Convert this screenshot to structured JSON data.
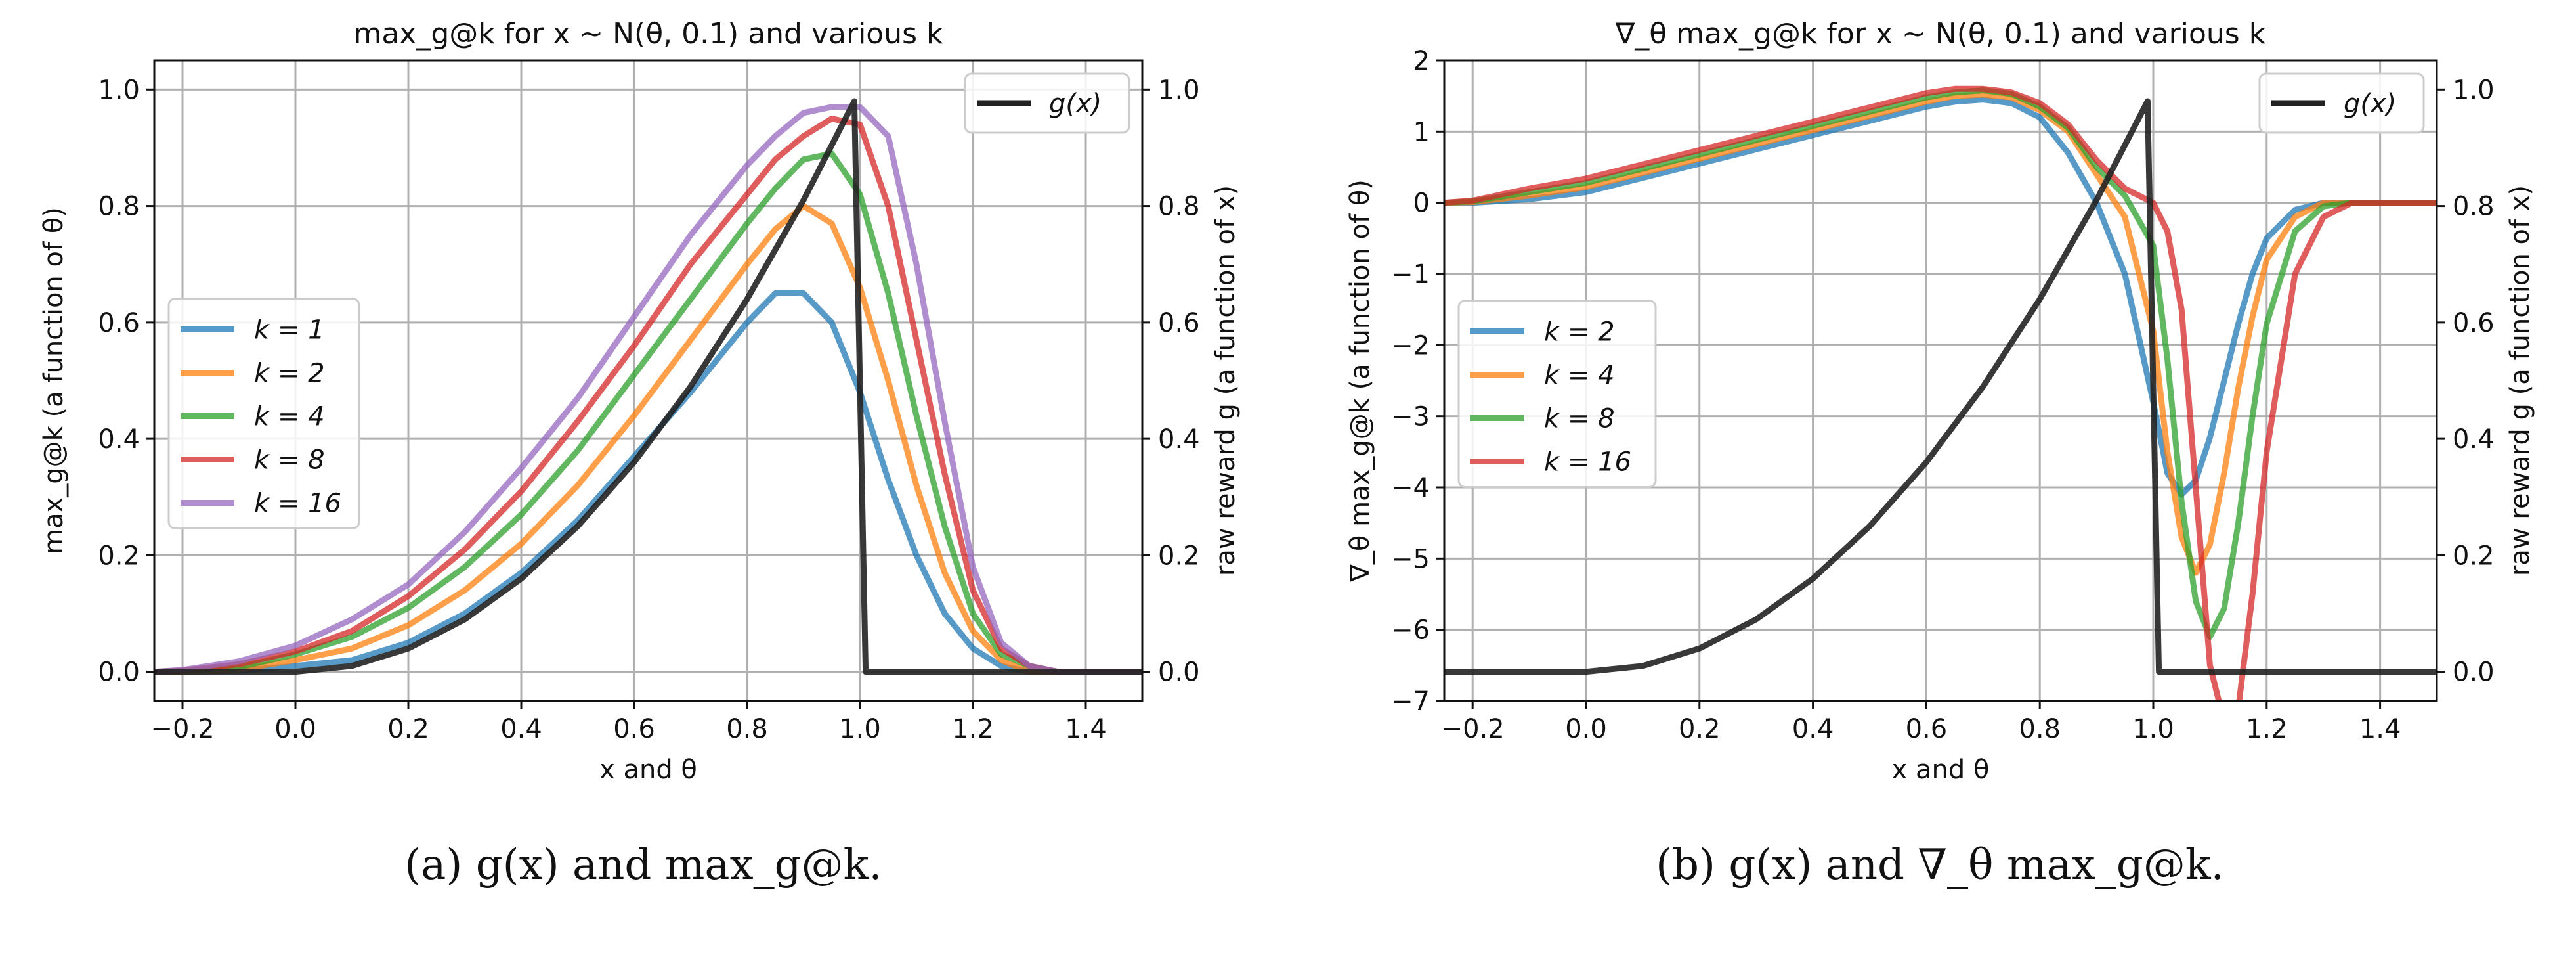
{
  "captions": {
    "a": "(a) g(x) and max_g@k.",
    "b": "(b) g(x) and ∇_θ max_g@k."
  },
  "colors": {
    "k1": "#1f77b4",
    "k2": "#ff7f0e",
    "k4": "#2ca02c",
    "k8": "#d62728",
    "k16": "#9467bd",
    "g": "#222222",
    "grid": "#b0b0b0"
  },
  "chart_data": [
    {
      "type": "line",
      "title": "max_g@k for x ~ N(θ, 0.1) and various k",
      "xlabel": "x and θ",
      "ylabel": "max_g@k (a function of θ)",
      "y2label": "raw reward g (a function of x)",
      "xlim": [
        -0.25,
        1.5
      ],
      "ylim": [
        -0.05,
        1.05
      ],
      "y2lim": [
        -0.05,
        1.05
      ],
      "xticks": [
        "-0.2",
        "0.0",
        "0.2",
        "0.4",
        "0.6",
        "0.8",
        "1.0",
        "1.2",
        "1.4"
      ],
      "yticks": [
        "0.0",
        "0.2",
        "0.4",
        "0.6",
        "0.8",
        "1.0"
      ],
      "y2ticks": [
        "0.0",
        "0.2",
        "0.4",
        "0.6",
        "0.8",
        "1.0"
      ],
      "grid": true,
      "legend_main": "center-left",
      "legend_g": "top-right",
      "g_label": "g(x)",
      "g_data": {
        "x": [
          -0.25,
          0.0,
          0.1,
          0.2,
          0.3,
          0.4,
          0.5,
          0.6,
          0.7,
          0.8,
          0.9,
          0.99,
          1.01,
          1.5
        ],
        "y": [
          0.0,
          0.0,
          0.01,
          0.04,
          0.09,
          0.16,
          0.25,
          0.36,
          0.49,
          0.64,
          0.81,
          0.98,
          0.0,
          0.0
        ]
      },
      "x": [
        -0.25,
        -0.2,
        -0.1,
        0.0,
        0.1,
        0.2,
        0.3,
        0.4,
        0.5,
        0.6,
        0.7,
        0.8,
        0.85,
        0.9,
        0.95,
        1.0,
        1.05,
        1.1,
        1.15,
        1.2,
        1.25,
        1.3,
        1.35,
        1.4,
        1.5
      ],
      "series": [
        {
          "name": "k = 1",
          "color": "k1",
          "values": [
            0.0,
            0.0,
            0.002,
            0.01,
            0.02,
            0.05,
            0.1,
            0.17,
            0.26,
            0.37,
            0.48,
            0.6,
            0.65,
            0.65,
            0.6,
            0.48,
            0.33,
            0.2,
            0.1,
            0.04,
            0.01,
            0.0,
            0.0,
            0.0,
            0.0
          ]
        },
        {
          "name": "k = 2",
          "color": "k2",
          "values": [
            0.0,
            0.0,
            0.004,
            0.02,
            0.04,
            0.08,
            0.14,
            0.22,
            0.32,
            0.44,
            0.57,
            0.7,
            0.76,
            0.8,
            0.77,
            0.66,
            0.5,
            0.32,
            0.17,
            0.07,
            0.02,
            0.0,
            0.0,
            0.0,
            0.0
          ]
        },
        {
          "name": "k = 4",
          "color": "k4",
          "values": [
            0.0,
            0.001,
            0.008,
            0.03,
            0.06,
            0.11,
            0.18,
            0.27,
            0.38,
            0.51,
            0.64,
            0.77,
            0.83,
            0.88,
            0.89,
            0.82,
            0.65,
            0.44,
            0.25,
            0.1,
            0.03,
            0.01,
            0.0,
            0.0,
            0.0
          ]
        },
        {
          "name": "k = 8",
          "color": "k8",
          "values": [
            0.0,
            0.002,
            0.013,
            0.035,
            0.07,
            0.13,
            0.21,
            0.31,
            0.43,
            0.56,
            0.7,
            0.82,
            0.88,
            0.92,
            0.95,
            0.94,
            0.8,
            0.57,
            0.34,
            0.14,
            0.04,
            0.01,
            0.0,
            0.0,
            0.0
          ]
        },
        {
          "name": "k = 16",
          "color": "k16",
          "values": [
            0.0,
            0.003,
            0.018,
            0.045,
            0.09,
            0.15,
            0.24,
            0.35,
            0.47,
            0.61,
            0.75,
            0.87,
            0.92,
            0.96,
            0.97,
            0.97,
            0.92,
            0.7,
            0.43,
            0.18,
            0.05,
            0.01,
            0.0,
            0.0,
            0.0
          ]
        }
      ]
    },
    {
      "type": "line",
      "title": "∇_θ max_g@k for x ~ N(θ, 0.1) and various k",
      "xlabel": "x and θ",
      "ylabel": "∇_θ max_g@k (a function of θ)",
      "y2label": "raw reward g (a function of x)",
      "xlim": [
        -0.25,
        1.5
      ],
      "ylim": [
        -7,
        2
      ],
      "y2lim": [
        -0.05,
        1.05
      ],
      "xticks": [
        "-0.2",
        "0.0",
        "0.2",
        "0.4",
        "0.6",
        "0.8",
        "1.0",
        "1.2",
        "1.4"
      ],
      "yticks": [
        "-7",
        "-6",
        "-5",
        "-4",
        "-3",
        "-2",
        "-1",
        "0",
        "1",
        "2"
      ],
      "y2ticks": [
        "0.0",
        "0.2",
        "0.4",
        "0.6",
        "0.8",
        "1.0"
      ],
      "grid": true,
      "legend_main": "center-left",
      "legend_g": "top-right",
      "g_label": "g(x)",
      "g_data": {
        "x": [
          -0.25,
          0.0,
          0.1,
          0.2,
          0.3,
          0.4,
          0.5,
          0.6,
          0.7,
          0.8,
          0.9,
          0.99,
          1.01,
          1.5
        ],
        "y": [
          0.0,
          0.0,
          0.01,
          0.04,
          0.09,
          0.16,
          0.25,
          0.36,
          0.49,
          0.64,
          0.81,
          0.98,
          0.0,
          0.0
        ]
      },
      "x": [
        -0.25,
        -0.2,
        -0.1,
        0.0,
        0.1,
        0.2,
        0.3,
        0.4,
        0.5,
        0.6,
        0.65,
        0.7,
        0.75,
        0.8,
        0.85,
        0.9,
        0.95,
        1.0,
        1.025,
        1.05,
        1.075,
        1.1,
        1.125,
        1.15,
        1.175,
        1.2,
        1.25,
        1.3,
        1.35,
        1.4,
        1.5
      ],
      "series": [
        {
          "name": "k = 2",
          "color": "k1",
          "values": [
            0.0,
            0.0,
            0.05,
            0.15,
            0.35,
            0.55,
            0.75,
            0.95,
            1.15,
            1.35,
            1.42,
            1.45,
            1.4,
            1.2,
            0.7,
            0.0,
            -1.0,
            -2.8,
            -3.8,
            -4.1,
            -3.9,
            -3.3,
            -2.5,
            -1.7,
            -1.0,
            -0.5,
            -0.1,
            0.0,
            0.0,
            0.0,
            0.0
          ]
        },
        {
          "name": "k = 4",
          "color": "k2",
          "values": [
            0.0,
            0.01,
            0.1,
            0.22,
            0.42,
            0.62,
            0.82,
            1.02,
            1.22,
            1.42,
            1.5,
            1.52,
            1.48,
            1.3,
            1.0,
            0.4,
            -0.2,
            -1.8,
            -3.5,
            -4.7,
            -5.2,
            -4.8,
            -3.8,
            -2.6,
            -1.6,
            -0.8,
            -0.2,
            0.0,
            0.0,
            0.0,
            0.0
          ]
        },
        {
          "name": "k = 8",
          "color": "k4",
          "values": [
            0.0,
            0.02,
            0.15,
            0.28,
            0.48,
            0.68,
            0.88,
            1.08,
            1.28,
            1.48,
            1.55,
            1.58,
            1.53,
            1.35,
            1.05,
            0.5,
            0.1,
            -0.6,
            -2.2,
            -4.2,
            -5.6,
            -6.1,
            -5.7,
            -4.5,
            -3.0,
            -1.7,
            -0.4,
            -0.05,
            0.0,
            0.0,
            0.0
          ]
        },
        {
          "name": "k = 16",
          "color": "k8",
          "values": [
            0.0,
            0.03,
            0.2,
            0.34,
            0.54,
            0.74,
            0.94,
            1.14,
            1.34,
            1.54,
            1.6,
            1.6,
            1.55,
            1.4,
            1.1,
            0.6,
            0.2,
            0.0,
            -0.4,
            -1.5,
            -4.0,
            -6.5,
            -7.3,
            -7.1,
            -5.5,
            -3.5,
            -1.0,
            -0.2,
            0.0,
            0.0,
            0.0
          ]
        }
      ]
    }
  ]
}
